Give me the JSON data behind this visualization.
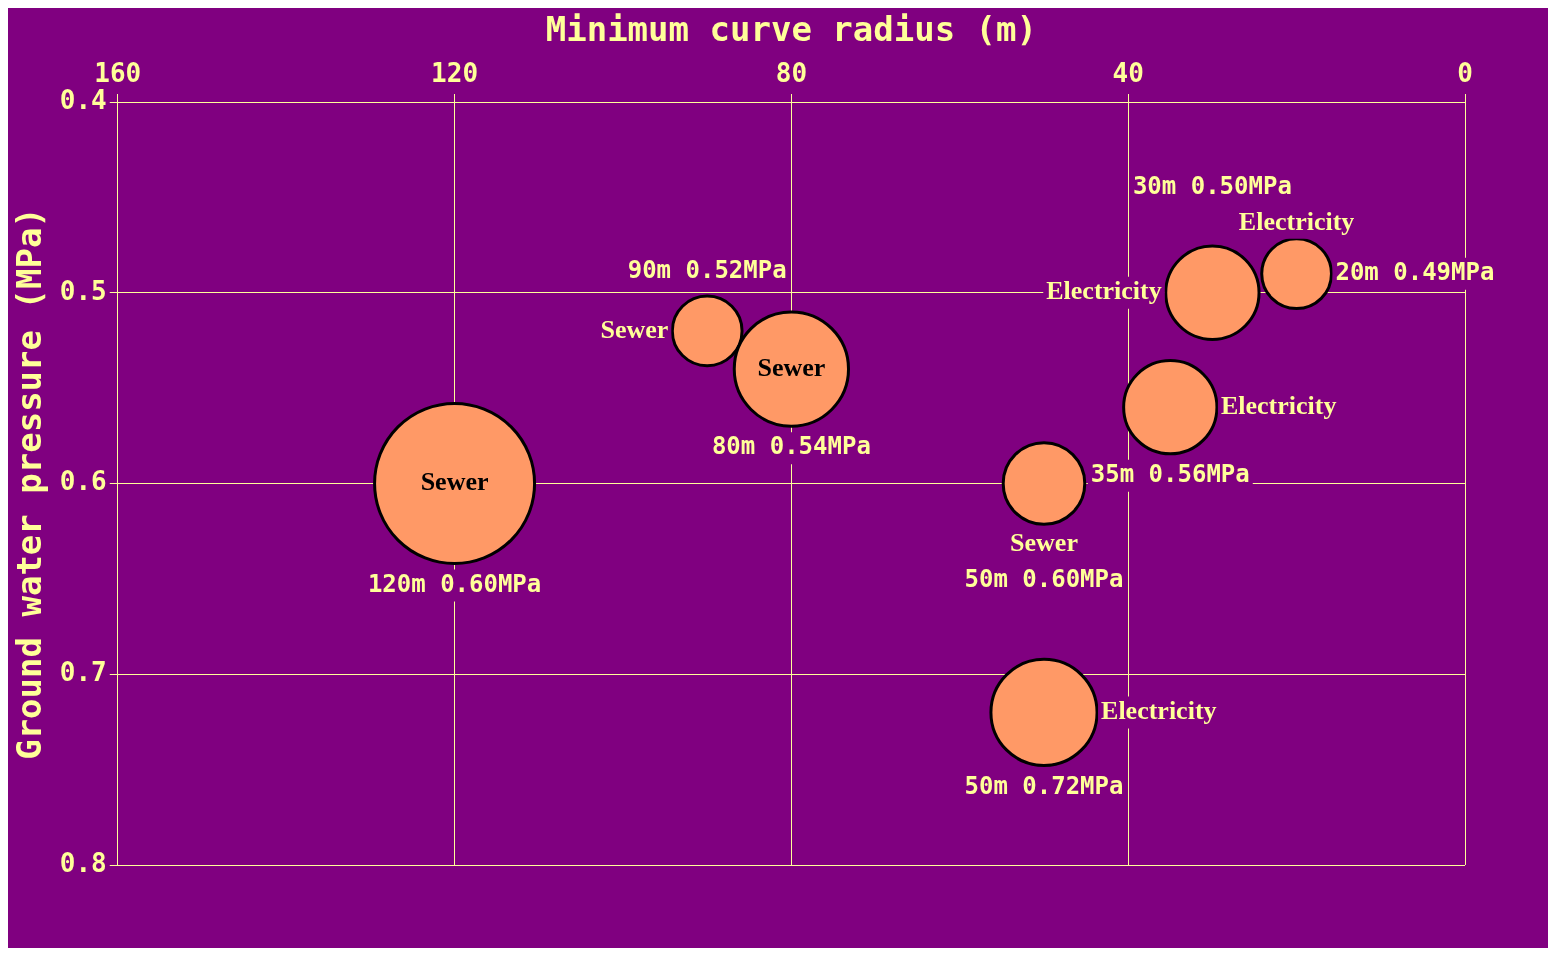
{
  "chart_data": {
    "type": "bubble",
    "xlabel": "Minimum curve radius (m)",
    "ylabel": "Ground water pressure (MPa)",
    "xlim": [
      160,
      0
    ],
    "xticks": [
      160,
      120,
      80,
      40,
      0
    ],
    "ylim": [
      0.8,
      0.4
    ],
    "yticks": [
      0.4,
      0.5,
      0.6,
      0.7,
      0.8
    ],
    "grid": true,
    "legend": false,
    "series": [
      {
        "name": "Sewer",
        "color": "#ff9966",
        "x": [
          120,
          90,
          80,
          50
        ],
        "values": [
          0.6,
          0.52,
          0.54,
          0.6
        ],
        "sizes": [
          1,
          0.19,
          0.51,
          0.26
        ],
        "value_labels": [
          "120m 0.60MPa",
          "90m 0.52MPa",
          "80m 0.54MPa",
          "50m 0.60MPa"
        ]
      },
      {
        "name": "Electricity",
        "color": "#ff9966",
        "x": [
          30,
          20,
          35,
          50
        ],
        "values": [
          0.5,
          0.49,
          0.56,
          0.72
        ],
        "sizes": [
          0.34,
          0.19,
          0.34,
          0.44
        ],
        "value_labels": [
          "30m 0.50MPa",
          "20m 0.49MPa",
          "35m 0.56MPa",
          "50m 0.72MPa"
        ]
      }
    ]
  }
}
